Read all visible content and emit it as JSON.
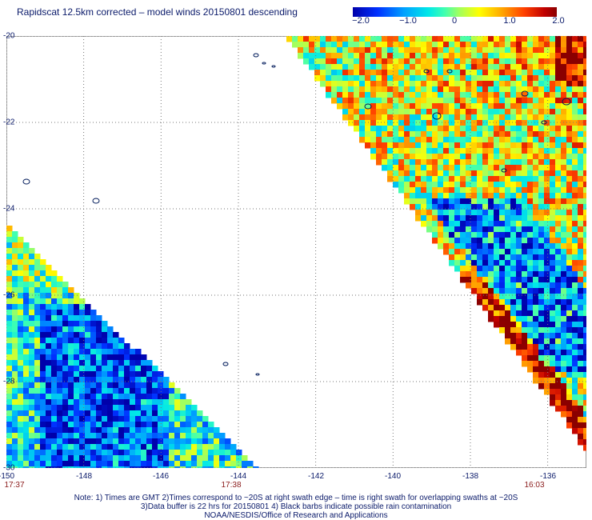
{
  "title": "Rapidscat 12.5km corrected – model winds 20150801 descending",
  "colorbar": {
    "labels": [
      "−2.0",
      "−1.0",
      "0",
      "1.0",
      "2.0"
    ],
    "values": [
      -2.0,
      -1.0,
      0,
      1.0,
      2.0
    ]
  },
  "map": {
    "lon_range": [
      -150,
      -135
    ],
    "lat_range": [
      -30,
      -20
    ],
    "x_ticks": [
      "-150",
      "-148",
      "-146",
      "-144",
      "-142",
      "-140",
      "-138",
      "-136"
    ],
    "y_ticks": [
      "-20",
      "-22",
      "-24",
      "-26",
      "-28",
      "-30"
    ],
    "grid": true,
    "time_labels": [
      "17:37",
      "17:38",
      "16:03"
    ]
  },
  "notes": [
    "Note: 1) Times are GMT 2)Times correspond to ~20S at right swath edge – time is right swath for overlapping swaths at ~20S",
    "3)Data buffer is 22 hrs for 20150801 4) Black barbs indicate possible rain contamination",
    "NOAA/NESDIS/Office of Research and Applications"
  ]
}
